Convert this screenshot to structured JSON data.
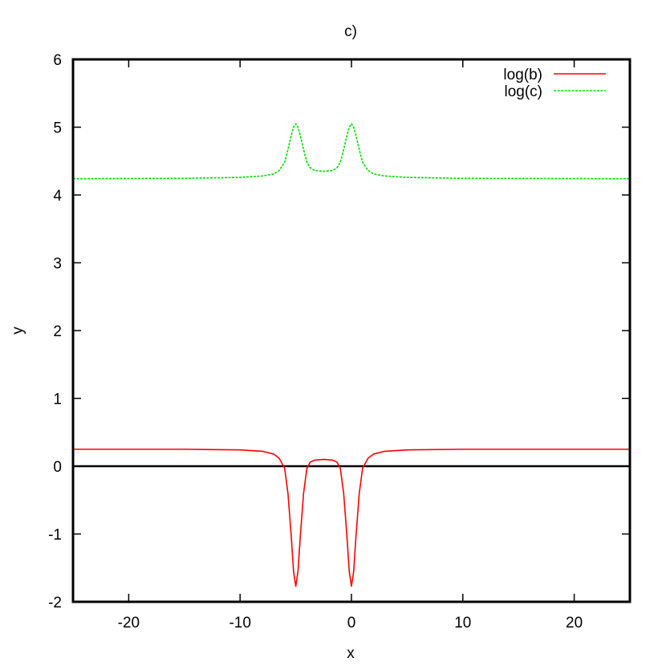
{
  "chart_data": {
    "type": "line",
    "title": "c)",
    "xlabel": "x",
    "ylabel": "y",
    "xlim": [
      -25,
      25
    ],
    "ylim": [
      -2,
      6
    ],
    "x_ticks": [
      -20,
      -10,
      0,
      10,
      20
    ],
    "x_tick_labels": [
      "-20",
      "-10",
      "0",
      "10",
      "20"
    ],
    "y_ticks": [
      -2,
      -1,
      0,
      1,
      2,
      3,
      4,
      5,
      6
    ],
    "y_tick_labels": [
      "-2",
      "-1",
      "0",
      "1",
      "2",
      "3",
      "4",
      "5",
      "6"
    ],
    "grid": false,
    "legend_position": "top-right",
    "zero_line": 0,
    "series": [
      {
        "name": "log(b)",
        "color": "#ff0000",
        "dash": "solid",
        "points": [
          [
            -25,
            0.25
          ],
          [
            -15,
            0.25
          ],
          [
            -10,
            0.24
          ],
          [
            -8,
            0.22
          ],
          [
            -7,
            0.18
          ],
          [
            -6.5,
            0.12
          ],
          [
            -6,
            -0.03
          ],
          [
            -5.7,
            -0.4
          ],
          [
            -5.4,
            -1.05
          ],
          [
            -5.2,
            -1.55
          ],
          [
            -5,
            -1.77
          ],
          [
            -4.8,
            -1.55
          ],
          [
            -4.6,
            -1.05
          ],
          [
            -4.3,
            -0.4
          ],
          [
            -4,
            -0.03
          ],
          [
            -3.7,
            0.06
          ],
          [
            -3.3,
            0.09
          ],
          [
            -2.5,
            0.1
          ],
          [
            -1.7,
            0.09
          ],
          [
            -1.3,
            0.06
          ],
          [
            -1,
            -0.03
          ],
          [
            -0.7,
            -0.4
          ],
          [
            -0.4,
            -1.05
          ],
          [
            -0.2,
            -1.55
          ],
          [
            0,
            -1.77
          ],
          [
            0.2,
            -1.55
          ],
          [
            0.4,
            -1.05
          ],
          [
            0.7,
            -0.4
          ],
          [
            1,
            -0.03
          ],
          [
            1.5,
            0.12
          ],
          [
            2,
            0.18
          ],
          [
            3,
            0.22
          ],
          [
            5,
            0.24
          ],
          [
            10,
            0.25
          ],
          [
            25,
            0.25
          ]
        ]
      },
      {
        "name": "log(c)",
        "color": "#00dd00",
        "dash": "dashed",
        "points": [
          [
            -25,
            4.24
          ],
          [
            -15,
            4.245
          ],
          [
            -10,
            4.26
          ],
          [
            -8,
            4.28
          ],
          [
            -7,
            4.31
          ],
          [
            -6.5,
            4.36
          ],
          [
            -6,
            4.48
          ],
          [
            -5.7,
            4.67
          ],
          [
            -5.4,
            4.88
          ],
          [
            -5.2,
            5.0
          ],
          [
            -5,
            5.05
          ],
          [
            -4.8,
            5.0
          ],
          [
            -4.6,
            4.88
          ],
          [
            -4.3,
            4.67
          ],
          [
            -4,
            4.48
          ],
          [
            -3.7,
            4.4
          ],
          [
            -3.3,
            4.36
          ],
          [
            -2.5,
            4.35
          ],
          [
            -1.7,
            4.36
          ],
          [
            -1.3,
            4.4
          ],
          [
            -1,
            4.48
          ],
          [
            -0.7,
            4.67
          ],
          [
            -0.4,
            4.88
          ],
          [
            -0.2,
            5.0
          ],
          [
            0,
            5.05
          ],
          [
            0.2,
            5.0
          ],
          [
            0.4,
            4.88
          ],
          [
            0.7,
            4.67
          ],
          [
            1,
            4.48
          ],
          [
            1.5,
            4.36
          ],
          [
            2,
            4.31
          ],
          [
            3,
            4.28
          ],
          [
            5,
            4.26
          ],
          [
            10,
            4.245
          ],
          [
            25,
            4.24
          ]
        ]
      }
    ]
  }
}
